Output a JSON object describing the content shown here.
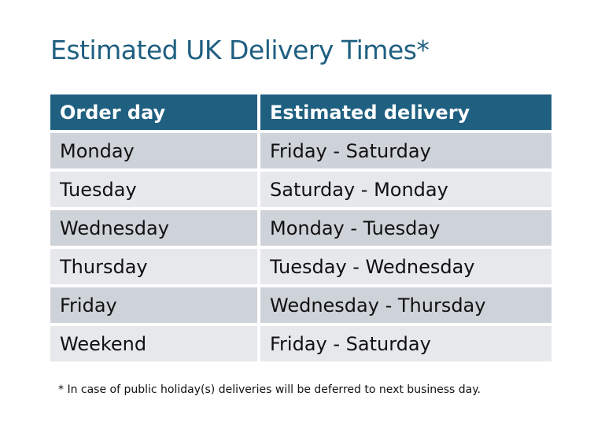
{
  "title": "Estimated UK Delivery Times*",
  "table": {
    "headers": [
      "Order day",
      "Estimated delivery"
    ],
    "rows": [
      [
        "Monday",
        "Friday - Saturday"
      ],
      [
        "Tuesday",
        "Saturday - Monday"
      ],
      [
        "Wednesday",
        "Monday - Tuesday"
      ],
      [
        "Thursday",
        "Tuesday - Wednesday"
      ],
      [
        "Friday",
        "Wednesday - Thursday"
      ],
      [
        "Weekend",
        "Friday - Saturday"
      ]
    ]
  },
  "footnote": "* In case of public holiday(s) deliveries will be deferred to next business day.",
  "colors": {
    "header": "#1f5f80",
    "row_dark": "#ced2d9",
    "row_light": "#e6e8eb"
  }
}
